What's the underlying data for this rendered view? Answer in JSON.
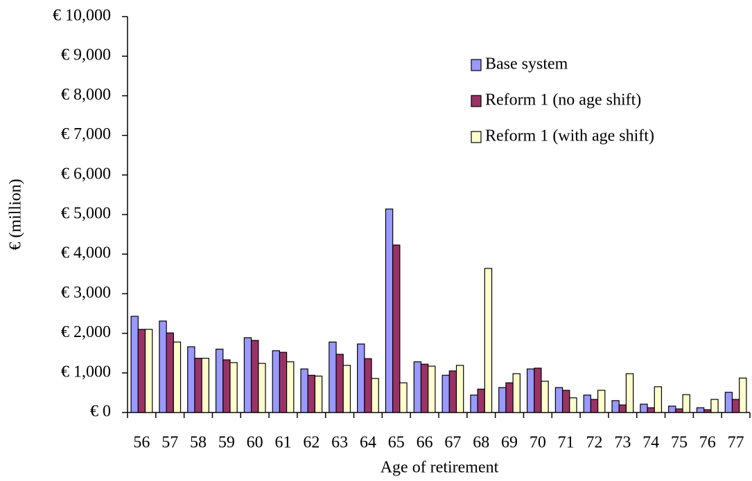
{
  "chart_data": {
    "type": "bar",
    "x_label": "Age of retirement",
    "y_label": "€ (million)",
    "categories": [
      "56",
      "57",
      "58",
      "59",
      "60",
      "61",
      "62",
      "63",
      "64",
      "65",
      "66",
      "67",
      "68",
      "69",
      "70",
      "71",
      "72",
      "73",
      "74",
      "75",
      "76",
      "77"
    ],
    "series": [
      {
        "name": "Base system",
        "color": "#9999ff",
        "values": [
          2430,
          2310,
          1660,
          1600,
          1890,
          1560,
          1100,
          1780,
          1730,
          5140,
          1280,
          940,
          440,
          630,
          1100,
          630,
          440,
          300,
          210,
          160,
          120,
          510
        ]
      },
      {
        "name": "Reform 1 (no age shift)",
        "color": "#993366",
        "values": [
          2100,
          2010,
          1370,
          1330,
          1820,
          1520,
          940,
          1470,
          1360,
          4230,
          1220,
          1050,
          590,
          750,
          1120,
          560,
          330,
          190,
          120,
          90,
          70,
          330
        ]
      },
      {
        "name": "Reform 1 (with age shift)",
        "color": "#ffffcc",
        "values": [
          2100,
          1780,
          1370,
          1260,
          1240,
          1280,
          920,
          1190,
          860,
          750,
          1170,
          1190,
          3640,
          980,
          790,
          370,
          560,
          980,
          650,
          450,
          330,
          870
        ]
      }
    ],
    "ylim": [
      0,
      10000
    ],
    "yticks": [
      {
        "value": 0,
        "label": "€ 0"
      },
      {
        "value": 1000,
        "label": "€ 1,000"
      },
      {
        "value": 2000,
        "label": "€ 2,000"
      },
      {
        "value": 3000,
        "label": "€ 3,000"
      },
      {
        "value": 4000,
        "label": "€ 4,000"
      },
      {
        "value": 5000,
        "label": "€ 5,000"
      },
      {
        "value": 6000,
        "label": "€ 6,000"
      },
      {
        "value": 7000,
        "label": "€ 7,000"
      },
      {
        "value": 8000,
        "label": "€ 8,000"
      },
      {
        "value": 9000,
        "label": "€ 9,000"
      },
      {
        "value": 10000,
        "label": "€ 10,000"
      }
    ],
    "grid": false,
    "legend": "top-right"
  }
}
